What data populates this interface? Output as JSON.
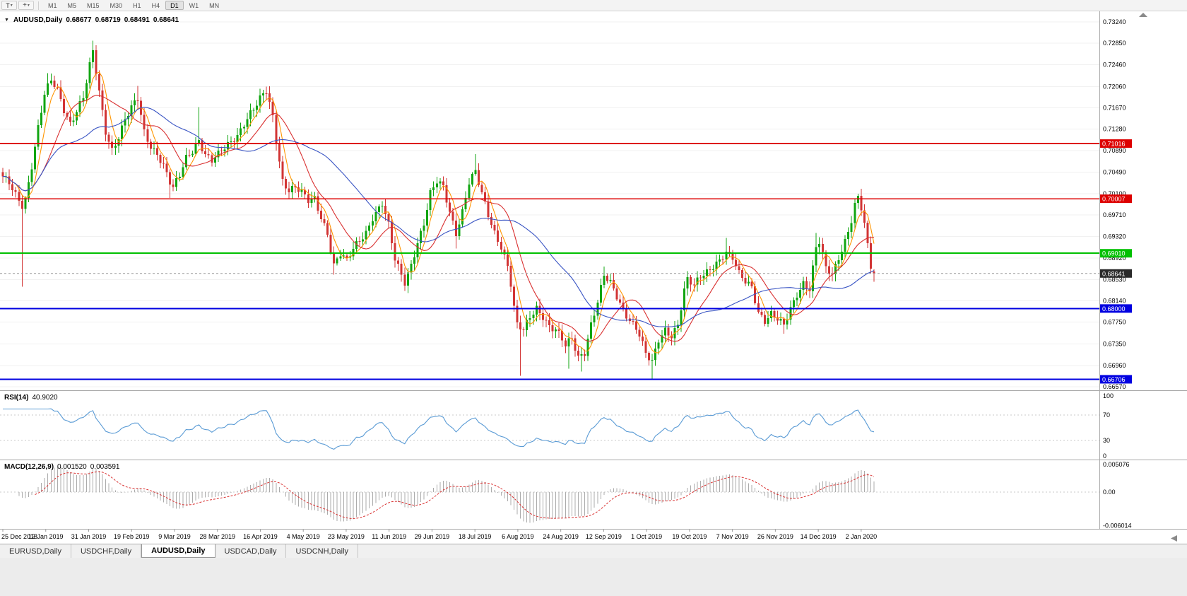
{
  "toolbar": {
    "text_tool_label": "T",
    "timeframes": [
      "M1",
      "M5",
      "M15",
      "M30",
      "H1",
      "H4",
      "D1",
      "W1",
      "MN"
    ],
    "active_timeframe": "D1"
  },
  "chart": {
    "title": "AUDUSD,Daily",
    "ohlc": {
      "open": "0.68677",
      "high": "0.68719",
      "low": "0.68491",
      "close": "0.68641"
    }
  },
  "price_axis": {
    "labels": [
      "0.73240",
      "0.72850",
      "0.72460",
      "0.72060",
      "0.71670",
      "0.71280",
      "0.70890",
      "0.70490",
      "0.70100",
      "0.69710",
      "0.69320",
      "0.68920",
      "0.68530",
      "0.68140",
      "0.67750",
      "0.67350",
      "0.66960",
      "0.66570"
    ]
  },
  "levels": [
    {
      "value": 0.71016,
      "label": "0.71016",
      "color": "#DD0000",
      "width": 2
    },
    {
      "value": 0.70007,
      "label": "0.70007",
      "color": "#DD0000",
      "width": 1.3
    },
    {
      "value": 0.6901,
      "label": "0.69010",
      "color": "#00C000",
      "width": 2
    },
    {
      "value": 0.68,
      "label": "0.68000",
      "color": "#0000E0",
      "width": 2
    },
    {
      "value": 0.66706,
      "label": "0.66706",
      "color": "#0000E0",
      "width": 2
    }
  ],
  "current_price": {
    "value": 0.68641,
    "label": "0.68641",
    "badge_color": "#2A2A2A",
    "line_color": "#999999"
  },
  "chart_data": {
    "type": "candlestick",
    "symbol": "AUDUSD",
    "timeframe": "Daily",
    "n_candles": 272,
    "y_range": [
      0.6651,
      0.7336
    ],
    "colors": {
      "up": "#11A511",
      "down": "#D23535"
    },
    "close_waypoints": [
      [
        0,
        0.7038
      ],
      [
        2,
        0.7028
      ],
      [
        4,
        0.7008
      ],
      [
        6,
        0.699
      ],
      [
        7,
        0.7002
      ],
      [
        9,
        0.7062
      ],
      [
        11,
        0.713
      ],
      [
        13,
        0.719
      ],
      [
        15,
        0.7215
      ],
      [
        17,
        0.72
      ],
      [
        19,
        0.7165
      ],
      [
        21,
        0.714
      ],
      [
        23,
        0.7162
      ],
      [
        25,
        0.7185
      ],
      [
        27,
        0.7242
      ],
      [
        28,
        0.7268
      ],
      [
        30,
        0.7195
      ],
      [
        32,
        0.7125
      ],
      [
        34,
        0.7092
      ],
      [
        36,
        0.7115
      ],
      [
        38,
        0.7145
      ],
      [
        40,
        0.7165
      ],
      [
        42,
        0.7182
      ],
      [
        44,
        0.7122
      ],
      [
        46,
        0.7098
      ],
      [
        48,
        0.7085
      ],
      [
        50,
        0.7062
      ],
      [
        52,
        0.703
      ],
      [
        53,
        0.7018
      ],
      [
        55,
        0.7042
      ],
      [
        57,
        0.7075
      ],
      [
        59,
        0.709
      ],
      [
        61,
        0.711
      ],
      [
        63,
        0.7082
      ],
      [
        65,
        0.707
      ],
      [
        67,
        0.708
      ],
      [
        69,
        0.7092
      ],
      [
        71,
        0.7105
      ],
      [
        73,
        0.7118
      ],
      [
        75,
        0.714
      ],
      [
        77,
        0.7158
      ],
      [
        79,
        0.7172
      ],
      [
        81,
        0.719
      ],
      [
        82,
        0.7196
      ],
      [
        84,
        0.715
      ],
      [
        85,
        0.7108
      ],
      [
        87,
        0.7035
      ],
      [
        89,
        0.7018
      ],
      [
        91,
        0.7022
      ],
      [
        93,
        0.701
      ],
      [
        95,
        0.6995
      ],
      [
        97,
        0.7
      ],
      [
        99,
        0.6968
      ],
      [
        101,
        0.694
      ],
      [
        103,
        0.688
      ],
      [
        105,
        0.69
      ],
      [
        107,
        0.6885
      ],
      [
        109,
        0.6908
      ],
      [
        111,
        0.6925
      ],
      [
        113,
        0.694
      ],
      [
        115,
        0.6968
      ],
      [
        118,
        0.6992
      ],
      [
        120,
        0.695
      ],
      [
        122,
        0.6888
      ],
      [
        125,
        0.6848
      ],
      [
        127,
        0.6882
      ],
      [
        129,
        0.6922
      ],
      [
        131,
        0.6955
      ],
      [
        133,
        0.7008
      ],
      [
        135,
        0.703
      ],
      [
        137,
        0.7022
      ],
      [
        139,
        0.6978
      ],
      [
        141,
        0.694
      ],
      [
        143,
        0.6978
      ],
      [
        145,
        0.703
      ],
      [
        147,
        0.7048
      ],
      [
        149,
        0.7008
      ],
      [
        151,
        0.6972
      ],
      [
        153,
        0.694
      ],
      [
        155,
        0.6915
      ],
      [
        157,
        0.6878
      ],
      [
        158,
        0.6845
      ],
      [
        159,
        0.68
      ],
      [
        160,
        0.6768
      ],
      [
        162,
        0.6758
      ],
      [
        164,
        0.6785
      ],
      [
        166,
        0.6802
      ],
      [
        168,
        0.6788
      ],
      [
        170,
        0.6768
      ],
      [
        172,
        0.676
      ],
      [
        174,
        0.6742
      ],
      [
        175,
        0.673
      ],
      [
        177,
        0.6745
      ],
      [
        179,
        0.6712
      ],
      [
        181,
        0.6722
      ],
      [
        183,
        0.6772
      ],
      [
        185,
        0.6812
      ],
      [
        187,
        0.6858
      ],
      [
        189,
        0.6845
      ],
      [
        191,
        0.6822
      ],
      [
        193,
        0.6798
      ],
      [
        195,
        0.6782
      ],
      [
        197,
        0.6765
      ],
      [
        198,
        0.6752
      ],
      [
        200,
        0.6715
      ],
      [
        202,
        0.67
      ],
      [
        204,
        0.6742
      ],
      [
        206,
        0.6762
      ],
      [
        208,
        0.6752
      ],
      [
        210,
        0.6772
      ],
      [
        212,
        0.6832
      ],
      [
        213,
        0.6852
      ],
      [
        215,
        0.684
      ],
      [
        217,
        0.6858
      ],
      [
        219,
        0.6868
      ],
      [
        221,
        0.688
      ],
      [
        223,
        0.689
      ],
      [
        225,
        0.6902
      ],
      [
        227,
        0.689
      ],
      [
        229,
        0.6862
      ],
      [
        231,
        0.685
      ],
      [
        233,
        0.6842
      ],
      [
        235,
        0.6795
      ],
      [
        237,
        0.6778
      ],
      [
        239,
        0.6788
      ],
      [
        241,
        0.6778
      ],
      [
        243,
        0.6768
      ],
      [
        245,
        0.68
      ],
      [
        247,
        0.6828
      ],
      [
        249,
        0.6848
      ],
      [
        251,
        0.6835
      ],
      [
        253,
        0.691
      ],
      [
        254,
        0.692
      ],
      [
        256,
        0.6872
      ],
      [
        258,
        0.6862
      ],
      [
        260,
        0.6895
      ],
      [
        262,
        0.6925
      ],
      [
        264,
        0.6962
      ],
      [
        265,
        0.6988
      ],
      [
        266,
        0.7002
      ],
      [
        267,
        0.6982
      ],
      [
        268,
        0.6952
      ],
      [
        269,
        0.6912
      ],
      [
        270,
        0.6875
      ],
      [
        271,
        0.6864
      ]
    ],
    "high_overrides": [
      [
        14,
        0.723
      ],
      [
        28,
        0.729
      ],
      [
        42,
        0.7207
      ],
      [
        61,
        0.7168
      ],
      [
        82,
        0.7206
      ],
      [
        118,
        0.6996
      ],
      [
        147,
        0.7082
      ],
      [
        187,
        0.6877
      ],
      [
        225,
        0.6929
      ],
      [
        253,
        0.6938
      ],
      [
        266,
        0.701
      ]
    ],
    "low_overrides": [
      [
        6,
        0.684
      ],
      [
        52,
        0.7002
      ],
      [
        103,
        0.6862
      ],
      [
        125,
        0.6832
      ],
      [
        141,
        0.691
      ],
      [
        161,
        0.6677
      ],
      [
        176,
        0.669
      ],
      [
        180,
        0.6685
      ],
      [
        202,
        0.6671
      ],
      [
        243,
        0.6754
      ]
    ],
    "last_candle": {
      "open": 0.68677,
      "high": 0.68719,
      "low": 0.68491,
      "close": 0.68641
    },
    "moving_averages": [
      {
        "name": "ma-fast-orange",
        "period": 5,
        "color": "#FF9500"
      },
      {
        "name": "ma-mid-red",
        "period": 13,
        "color": "#D93030"
      },
      {
        "name": "ma-slow-blue",
        "period": 34,
        "color": "#3A55C4"
      }
    ]
  },
  "rsi": {
    "label": "RSI(14)",
    "value": "40.9020",
    "period": 14,
    "guide_levels": [
      30,
      70
    ],
    "axis_labels": [
      "100",
      "70",
      "30",
      "0"
    ],
    "color": "#5A9BD5",
    "range": [
      0,
      100
    ]
  },
  "macd": {
    "label": "MACD(12,26,9)",
    "value_main": "0.001520",
    "value_signal": "0.003591",
    "fast": 12,
    "slow": 26,
    "signal": 9,
    "axis_labels": [
      "0.005076",
      "0.00",
      "-0.006014"
    ],
    "range": [
      -0.006014,
      0.005076
    ],
    "histogram_color": "#ABABAB",
    "signal_color": "#D93030"
  },
  "date_axis": {
    "labels": [
      "25 Dec 2018",
      "12 Jan 2019",
      "31 Jan 2019",
      "19 Feb 2019",
      "9 Mar 2019",
      "28 Mar 2019",
      "16 Apr 2019",
      "4 May 2019",
      "23 May 2019",
      "11 Jun 2019",
      "29 Jun 2019",
      "18 Jul 2019",
      "6 Aug 2019",
      "24 Aug 2019",
      "12 Sep 2019",
      "1 Oct 2019",
      "19 Oct 2019",
      "7 Nov 2019",
      "26 Nov 2019",
      "14 Dec 2019",
      "2 Jan 2020"
    ]
  },
  "tabs": {
    "items": [
      "EURUSD,Daily",
      "USDCHF,Daily",
      "AUDUSD,Daily",
      "USDCAD,Daily",
      "USDCNH,Daily"
    ],
    "active_index": 2
  }
}
